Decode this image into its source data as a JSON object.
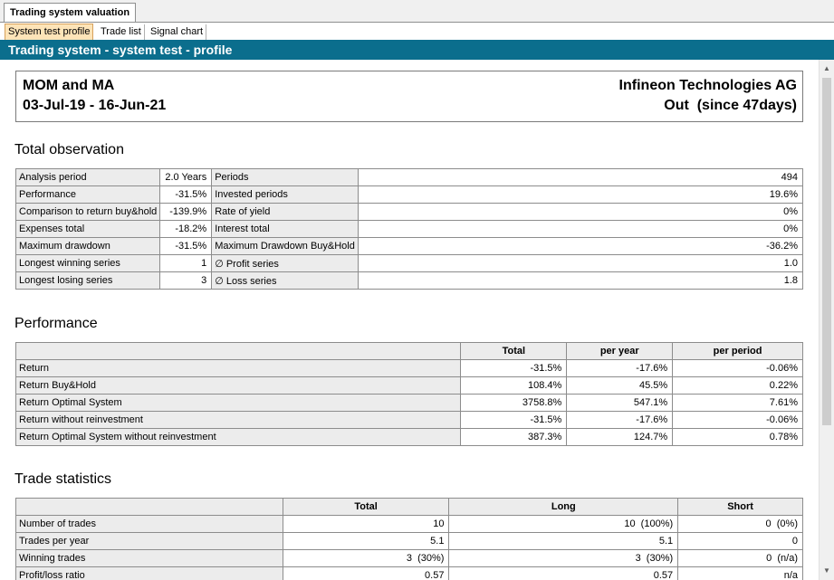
{
  "window": {
    "tab_title": "Trading system valuation"
  },
  "tabs": [
    {
      "label": "System test profile",
      "active": true
    },
    {
      "label": "Trade list",
      "active": false
    },
    {
      "label": "Signal chart",
      "active": false
    }
  ],
  "header": {
    "title": "Trading system - system test - profile"
  },
  "info": {
    "system_name": "MOM and MA",
    "date_range": "03-Jul-19 - 16-Jun-21",
    "instrument": "Infineon Technologies AG",
    "status": "Out  (since 47days)"
  },
  "total_observation": {
    "title": "Total observation",
    "rows": [
      {
        "l1": "Analysis period",
        "v1": "2.0 Years",
        "l2": "Periods",
        "v2": "494"
      },
      {
        "l1": "Performance",
        "v1": "-31.5%",
        "l2": "Invested periods",
        "v2": "19.6%"
      },
      {
        "l1": "Comparison to return buy&hold",
        "v1": "-139.9%",
        "l2": "Rate of yield",
        "v2": "0%"
      },
      {
        "l1": "Expenses total",
        "v1": "-18.2%",
        "l2": "Interest total",
        "v2": "0%"
      },
      {
        "l1": "Maximum drawdown",
        "v1": "-31.5%",
        "l2": "Maximum Drawdown Buy&Hold",
        "v2": "-36.2%"
      },
      {
        "l1": "Longest winning series",
        "v1": "1",
        "l2": "∅ Profit series",
        "v2": "1.0"
      },
      {
        "l1": "Longest losing series",
        "v1": "3",
        "l2": "∅ Loss series",
        "v2": "1.8"
      }
    ]
  },
  "performance": {
    "title": "Performance",
    "headers": [
      "",
      "Total",
      "per year",
      "per period"
    ],
    "rows": [
      {
        "label": "Return",
        "total": "-31.5%",
        "per_year": "-17.6%",
        "per_period": "-0.06%"
      },
      {
        "label": "Return Buy&Hold",
        "total": "108.4%",
        "per_year": "45.5%",
        "per_period": "0.22%"
      },
      {
        "label": "Return Optimal System",
        "total": "3758.8%",
        "per_year": "547.1%",
        "per_period": "7.61%"
      },
      {
        "label": "Return without reinvestment",
        "total": "-31.5%",
        "per_year": "-17.6%",
        "per_period": "-0.06%"
      },
      {
        "label": "Return Optimal System without reinvestment",
        "total": "387.3%",
        "per_year": "124.7%",
        "per_period": "0.78%"
      }
    ]
  },
  "trade_statistics": {
    "title": "Trade statistics",
    "headers": [
      "",
      "Total",
      "Long",
      "Short"
    ],
    "rows": [
      {
        "label": "Number of trades",
        "total": "10",
        "long": "10  (100%)",
        "short": "0  (0%)"
      },
      {
        "label": "Trades per year",
        "total": "5.1",
        "long": "5.1",
        "short": "0"
      },
      {
        "label": "Winning trades",
        "total": "3  (30%)",
        "long": "3  (30%)",
        "short": "0  (n/a)"
      },
      {
        "label": "Profit/loss ratio",
        "total": "0.57",
        "long": "0.57",
        "short": "n/a"
      }
    ]
  }
}
